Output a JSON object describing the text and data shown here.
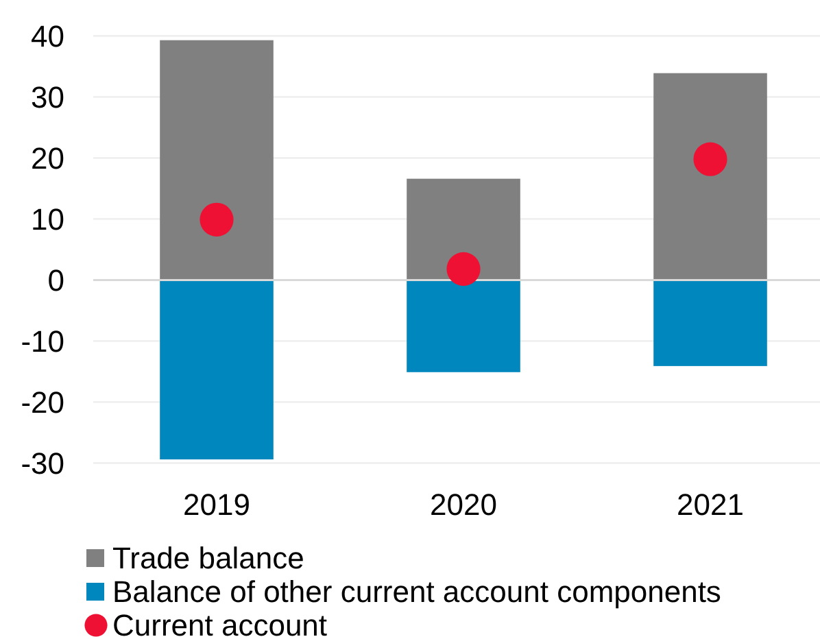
{
  "chart_data": {
    "type": "bar",
    "stacked": true,
    "categories": [
      "2019",
      "2020",
      "2021"
    ],
    "series": [
      {
        "name": "Trade balance",
        "color": "#808080",
        "values": [
          39.3,
          16.6,
          33.9
        ]
      },
      {
        "name": "Balance of other current account components",
        "color": "#0087bd",
        "values": [
          -29.4,
          -15.1,
          -14.1
        ]
      },
      {
        "name": "Current account",
        "type": "scatter",
        "color": "#ee1133",
        "values": [
          9.9,
          1.8,
          19.8
        ]
      }
    ],
    "ylim": [
      -30,
      40
    ],
    "yticks": [
      -30,
      -20,
      -10,
      0,
      10,
      20,
      30,
      40
    ],
    "grid": "y",
    "legend": "bottom",
    "marker": "circle"
  }
}
